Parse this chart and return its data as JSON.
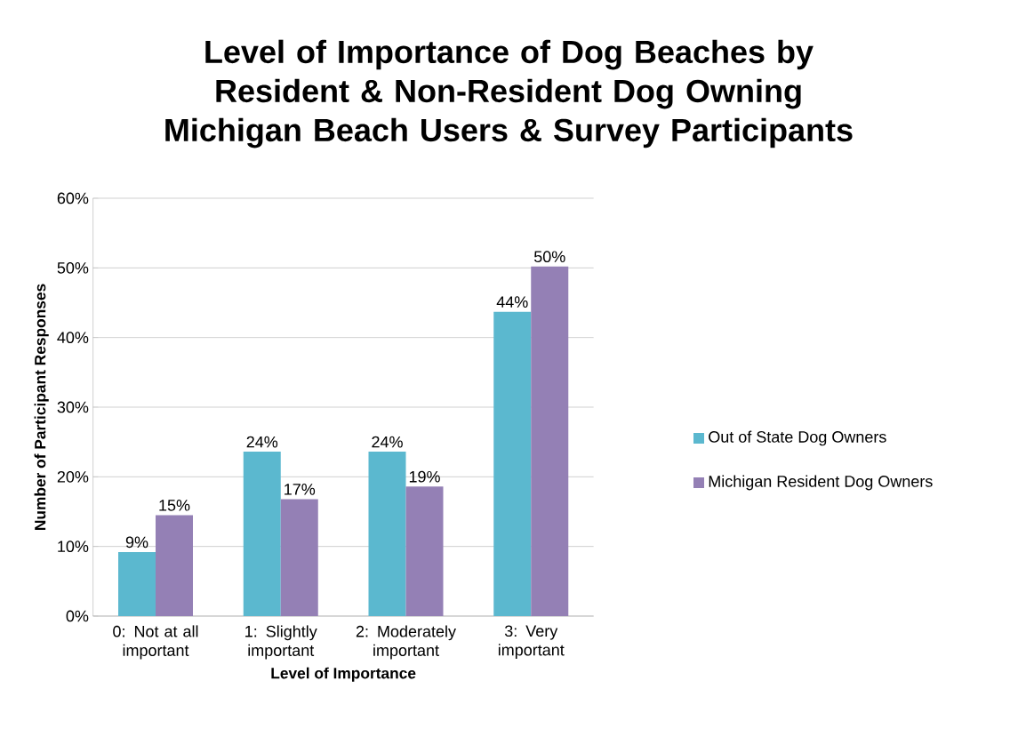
{
  "chart_data": {
    "type": "bar",
    "title": "Level of Importance of Dog Beaches by Resident & Non-Resident Dog Owning Michigan Beach Users & Survey Participants",
    "xlabel": "Level of Importance",
    "ylabel": "Number of Participant Responses",
    "categories": [
      "0: Not at all important",
      "1: Slightly important",
      "2: Moderately important",
      "3: Very important"
    ],
    "series": [
      {
        "name": "Out of State Dog Owners",
        "color": "#5bb8cf",
        "values": [
          9.2,
          23.6,
          23.6,
          43.7
        ],
        "value_labels": [
          "9%",
          "24%",
          "24%",
          "44%"
        ]
      },
      {
        "name": "Michigan Resident Dog Owners",
        "color": "#9480b5",
        "values": [
          14.5,
          16.8,
          18.6,
          50.2
        ],
        "value_labels": [
          "15%",
          "17%",
          "19%",
          "50%"
        ]
      }
    ],
    "ylim": [
      0,
      60
    ],
    "yticks": [
      {
        "value": 0,
        "label": "0%"
      },
      {
        "value": 10,
        "label": "10%"
      },
      {
        "value": 20,
        "label": "20%"
      },
      {
        "value": 30,
        "label": "30%"
      },
      {
        "value": 40,
        "label": "40%"
      },
      {
        "value": 50,
        "label": "50%"
      },
      {
        "value": 60,
        "label": "60%"
      }
    ],
    "grid": "y",
    "legend": "right"
  }
}
